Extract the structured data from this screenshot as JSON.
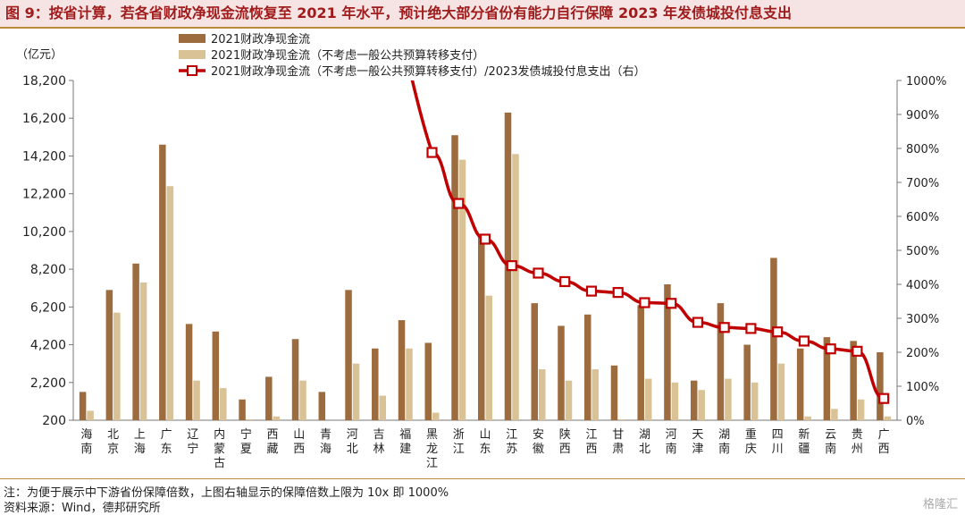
{
  "title": "图 9：按省计算，若各省财政净现金流恢复至 2021 年水平，预计绝大部分省份有能力自行保障 2023 年发债城投付息支出",
  "notes": {
    "note": "注：为便于展示中下游省份保障倍数，上图右轴显示的保障倍数上限为 10x 即 1000%",
    "source": "资料来源：Wind，德邦研究所"
  },
  "watermark": "格隆汇",
  "colors": {
    "bar1": "#9c6b3e",
    "bar2": "#d9c296",
    "line": "#c00000"
  },
  "chart_data": {
    "type": "bar",
    "left_unit": "（亿元）",
    "ylim_left": [
      200,
      18200
    ],
    "yticks_left": [
      "200",
      "2,200",
      "4,200",
      "6,200",
      "8,200",
      "10,200",
      "12,200",
      "14,200",
      "16,200",
      "18,200"
    ],
    "ylim_right": [
      0,
      1000
    ],
    "yticks_right": [
      "0%",
      "100%",
      "200%",
      "300%",
      "400%",
      "500%",
      "600%",
      "700%",
      "800%",
      "900%",
      "1000%"
    ],
    "legend_position": "top-left",
    "categories": [
      "海南",
      "北京",
      "上海",
      "广东",
      "辽宁",
      "内蒙古",
      "宁夏",
      "西藏",
      "山西",
      "青海",
      "河北",
      "吉林",
      "福建",
      "黑龙江",
      "浙江",
      "山东",
      "江苏",
      "安徽",
      "陕西",
      "江西",
      "甘肃",
      "湖北",
      "河南",
      "天津",
      "湖南",
      "重庆",
      "四川",
      "新疆",
      "云南",
      "贵州",
      "广西"
    ],
    "series": [
      {
        "name": "2021财政净现金流",
        "axis": "left",
        "kind": "bar",
        "values": [
          1700,
          7100,
          8500,
          14800,
          5300,
          4900,
          1300,
          2500,
          4500,
          1700,
          7100,
          4000,
          5500,
          4300,
          15300,
          10000,
          16500,
          6400,
          5200,
          5800,
          3100,
          6300,
          7400,
          2300,
          6400,
          4200,
          8800,
          4000,
          4600,
          4400,
          3800
        ]
      },
      {
        "name": "2021财政净现金流（不考虑一般公共预算转移支付）",
        "axis": "left",
        "kind": "bar",
        "values": [
          700,
          5900,
          7500,
          12600,
          2300,
          1900,
          250,
          400,
          2300,
          150,
          3200,
          1500,
          4000,
          600,
          14000,
          6800,
          14300,
          2900,
          2300,
          2900,
          250,
          2400,
          2200,
          1800,
          2400,
          2200,
          3200,
          400,
          800,
          1300,
          400
        ]
      },
      {
        "name": "2021财政净现金流（不考虑一般公共预算转移支付）/2023发债城投付息支出（右）",
        "axis": "right",
        "kind": "line",
        "values": [
          null,
          null,
          null,
          null,
          null,
          null,
          null,
          null,
          null,
          null,
          null,
          null,
          null,
          788,
          638,
          533,
          455,
          433,
          408,
          380,
          376,
          346,
          344,
          288,
          273,
          270,
          260,
          233,
          210,
          203,
          64
        ]
      }
    ]
  }
}
